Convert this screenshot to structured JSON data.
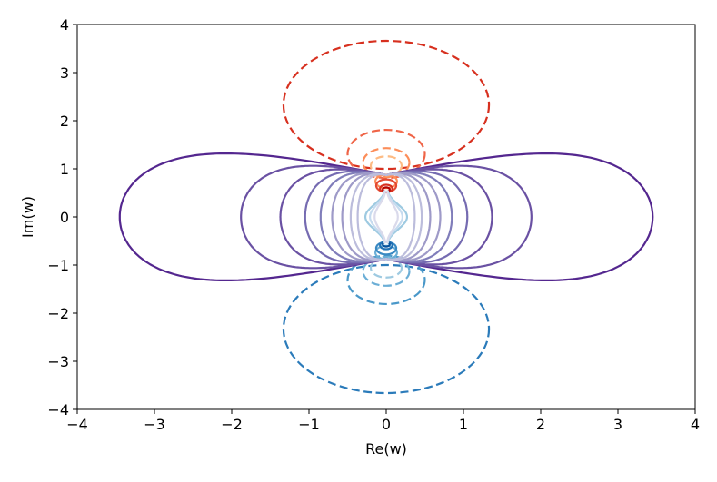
{
  "chart_data": {
    "type": "contour",
    "title": "",
    "xlabel": "Re(w)",
    "ylabel": "Im(w)",
    "xlim": [
      -4,
      4
    ],
    "ylim": [
      -4,
      4
    ],
    "xticks": [
      -4,
      -3,
      -2,
      -1,
      0,
      1,
      2,
      3,
      4
    ],
    "yticks": [
      -4,
      -3,
      -2,
      -1,
      0,
      1,
      2,
      3,
      4
    ],
    "xtick_labels": [
      "−4",
      "−3",
      "−2",
      "−1",
      "0",
      "1",
      "2",
      "3",
      "4"
    ],
    "ytick_labels": [
      "−4",
      "−3",
      "−2",
      "−1",
      "0",
      "1",
      "2",
      "3",
      "4"
    ],
    "grid": false,
    "series": [
      {
        "group": "red",
        "line_style": "dashed",
        "loops": [
          {
            "center": [
              0,
              2.33
            ],
            "radius": 1.33,
            "color": "#d7301f"
          },
          {
            "center": [
              0,
              1.31
            ],
            "radius": 0.5,
            "color": "#ef6548"
          },
          {
            "center": [
              0,
              1.13
            ],
            "radius": 0.3,
            "color": "#fc8d59"
          },
          {
            "center": [
              0,
              1.06
            ],
            "radius": 0.2,
            "color": "#fdbb84"
          }
        ]
      },
      {
        "group": "red",
        "line_style": "solid",
        "loops": [
          {
            "center": [
              0,
              0.74
            ],
            "radius": 0.14,
            "color": "#fc8d59"
          },
          {
            "center": [
              0,
              0.65
            ],
            "radius": 0.13,
            "color": "#e34a33"
          },
          {
            "center": [
              0,
              0.59
            ],
            "radius": 0.08,
            "color": "#d7301f"
          },
          {
            "center": [
              0,
              0.57
            ],
            "radius": 0.045,
            "color": "#b30000"
          }
        ]
      },
      {
        "group": "blue",
        "line_style": "dashed",
        "loops": [
          {
            "center": [
              0,
              -2.33
            ],
            "radius": 1.33,
            "color": "#2b7bba"
          },
          {
            "center": [
              0,
              -1.31
            ],
            "radius": 0.5,
            "color": "#4a98c9"
          },
          {
            "center": [
              0,
              -1.13
            ],
            "radius": 0.3,
            "color": "#6baed6"
          },
          {
            "center": [
              0,
              -1.06
            ],
            "radius": 0.2,
            "color": "#9ecae1"
          }
        ]
      },
      {
        "group": "blue",
        "line_style": "solid",
        "loops": [
          {
            "center": [
              0,
              -0.74
            ],
            "radius": 0.14,
            "color": "#6baed6"
          },
          {
            "center": [
              0,
              -0.65
            ],
            "radius": 0.13,
            "color": "#3a89c3"
          },
          {
            "center": [
              0,
              -0.59
            ],
            "radius": 0.08,
            "color": "#2171b5"
          },
          {
            "center": [
              0,
              -0.57
            ],
            "radius": 0.045,
            "color": "#08519c"
          }
        ]
      },
      {
        "group": "purple",
        "line_style": "solid",
        "lemniscates": [
          {
            "x_extent": 3.45,
            "color": "#54278f"
          },
          {
            "x_extent": 1.88,
            "color": "#6a51a3"
          },
          {
            "x_extent": 1.37,
            "color": "#6a51a3"
          },
          {
            "x_extent": 1.05,
            "color": "#756bb1"
          },
          {
            "x_extent": 0.85,
            "color": "#807dba"
          },
          {
            "x_extent": 0.7,
            "color": "#9e9ac8"
          },
          {
            "x_extent": 0.57,
            "color": "#9e9ac8"
          },
          {
            "x_extent": 0.46,
            "color": "#bcbddc"
          },
          {
            "x_extent": 0.37,
            "color": "#bcbddc"
          }
        ],
        "neck_points": [
          [
            0,
            0.87
          ],
          [
            0,
            -0.87
          ]
        ]
      },
      {
        "group": "center",
        "line_style": "solid",
        "waists": [
          {
            "y_extent": 0.55,
            "half_width": 0.27,
            "color": "#9ecae1"
          },
          {
            "y_extent": 0.55,
            "half_width": 0.21,
            "color": "#c6dbef"
          },
          {
            "y_extent": 0.55,
            "half_width": 0.15,
            "color": "#dadaeb"
          }
        ]
      }
    ]
  }
}
